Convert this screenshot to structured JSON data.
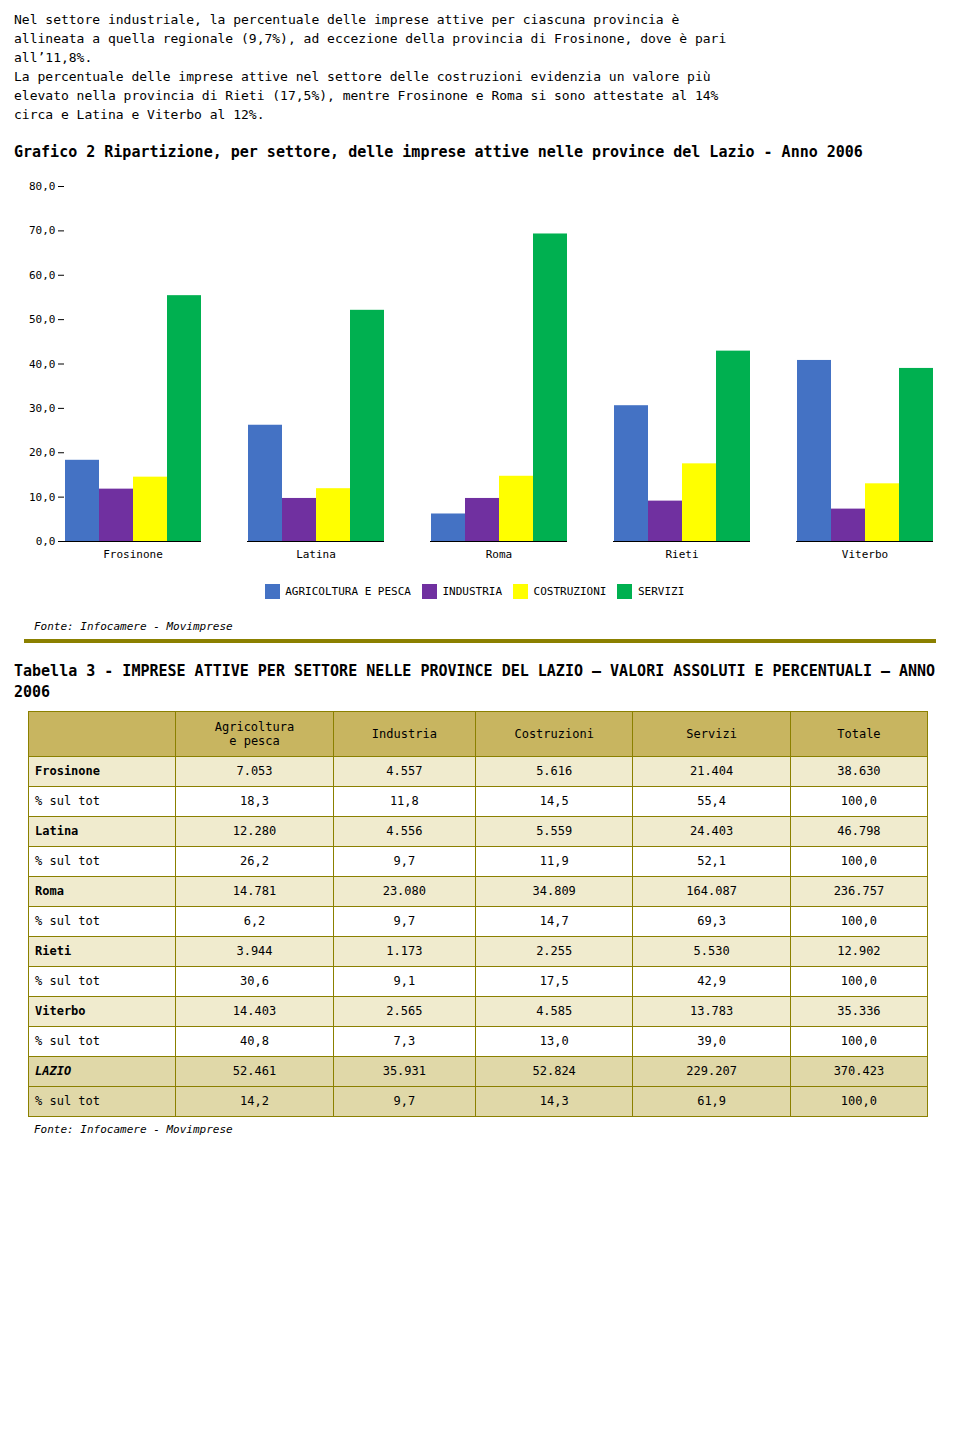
{
  "intro": [
    "Nel settore industriale, la percentuale delle imprese attive per ciascuna provincia è",
    "allineata a quella regionale (9,7%), ad eccezione della provincia di Frosinone, dove è pari",
    "all’11,8%.",
    "La percentuale delle imprese attive nel settore delle costruzioni evidenzia un valore più",
    "elevato nella provincia di Rieti (17,5%), mentre Frosinone e Roma si sono attestate al 14%",
    "circa e Latina e Viterbo al 12%."
  ],
  "chart_data": {
    "type": "bar",
    "title": "Grafico 2 Ripartizione, per settore, delle imprese attive nelle province del Lazio - Anno 2006",
    "categories": [
      "Frosinone",
      "Latina",
      "Roma",
      "Rieti",
      "Viterbo"
    ],
    "series": [
      {
        "name": "AGRICOLTURA E PESCA",
        "color": "#4472c4",
        "values": [
          18.3,
          26.2,
          6.2,
          30.6,
          40.8
        ]
      },
      {
        "name": "INDUSTRIA",
        "color": "#7030a0",
        "values": [
          11.8,
          9.7,
          9.7,
          9.1,
          7.3
        ]
      },
      {
        "name": "COSTRUZIONI",
        "color": "#ffff00",
        "values": [
          14.5,
          11.9,
          14.7,
          17.5,
          13.0
        ]
      },
      {
        "name": "SERVIZI",
        "color": "#00b050",
        "values": [
          55.4,
          52.1,
          69.3,
          42.9,
          39.0
        ]
      }
    ],
    "ylim": [
      0,
      80
    ],
    "yticks": [
      {
        "value": 0,
        "label": "0,0"
      },
      {
        "value": 10,
        "label": "10,0"
      },
      {
        "value": 20,
        "label": "20,0"
      },
      {
        "value": 30,
        "label": "30,0"
      },
      {
        "value": 40,
        "label": "40,0"
      },
      {
        "value": 50,
        "label": "50,0"
      },
      {
        "value": 60,
        "label": "60,0"
      },
      {
        "value": 70,
        "label": "70,0"
      },
      {
        "value": 80,
        "label": "80,0"
      }
    ],
    "legend": "bottom",
    "caption": "Fonte: Infocamere - Movimprese"
  },
  "table": {
    "title": "Tabella 3  -  IMPRESE ATTIVE PER SETTORE NELLE PROVINCE DEL LAZIO – VALORI ASSOLUTI E PERCENTUALI – ANNO 2006",
    "header": [
      null,
      "Agricoltura\ne pesca",
      "Industria",
      "Costruzioni",
      "Servizi",
      "Totale"
    ],
    "rows": [
      [
        "Frosinone",
        "7.053",
        "4.557",
        "5.616",
        "21.404",
        "38.630"
      ],
      [
        "% sul tot",
        "18,3",
        "11,8",
        "14,5",
        "55,4",
        "100,0"
      ],
      [
        "Latina",
        "12.280",
        "4.556",
        "5.559",
        "24.403",
        "46.798"
      ],
      [
        "% sul tot",
        "26,2",
        "9,7",
        "11,9",
        "52,1",
        "100,0"
      ],
      [
        "Roma",
        "14.781",
        "23.080",
        "34.809",
        "164.087",
        "236.757"
      ],
      [
        "% sul tot",
        "6,2",
        "9,7",
        "14,7",
        "69,3",
        "100,0"
      ],
      [
        "Rieti",
        "3.944",
        "1.173",
        "2.255",
        "5.530",
        "12.902"
      ],
      [
        "% sul tot",
        "30,6",
        "9,1",
        "17,5",
        "42,9",
        "100,0"
      ],
      [
        "Viterbo",
        "14.403",
        "2.565",
        "4.585",
        "13.783",
        "35.336"
      ],
      [
        "% sul tot",
        "40,8",
        "7,3",
        "13,0",
        "39,0",
        "100,0"
      ],
      [
        "LAZIO",
        "52.461",
        "35.931",
        "52.824",
        "229.207",
        "370.423"
      ],
      [
        "% sul tot",
        "14,2",
        "9,7",
        "14,3",
        "61,9",
        "100,0"
      ]
    ],
    "caption": "Fonte: Infocamere - Movimprese"
  }
}
